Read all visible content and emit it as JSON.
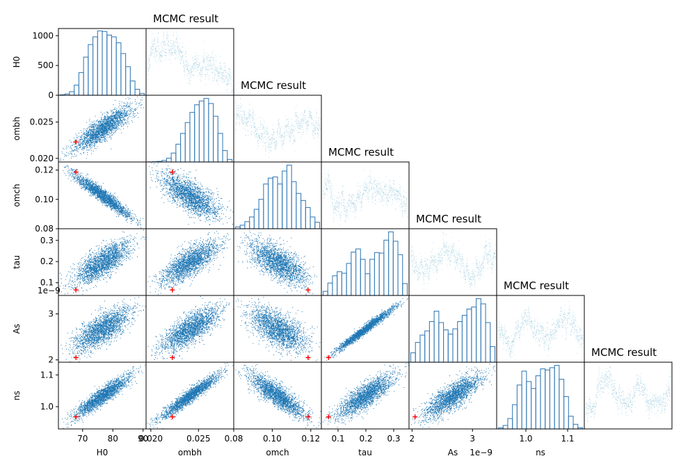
{
  "chart_data": {
    "type": "corner",
    "parameters": [
      "H0",
      "ombh",
      "omch",
      "tau",
      "As",
      "ns"
    ],
    "axes": {
      "H0": {
        "range": [
          62,
          91
        ],
        "ticks": [
          70,
          80,
          90
        ],
        "tick_labels": [
          "70",
          "80",
          "90"
        ]
      },
      "ombh": {
        "range": [
          0.0195,
          0.0287
        ],
        "ticks": [
          0.02,
          0.025
        ],
        "tick_labels": [
          "0.020",
          "0.025"
        ]
      },
      "omch": {
        "range": [
          0.08,
          0.1255
        ],
        "ticks": [
          0.08,
          0.1,
          0.12
        ],
        "tick_labels": [
          "0.08",
          "0.10",
          "0.12"
        ]
      },
      "tau": {
        "range": [
          0.04,
          0.355
        ],
        "ticks": [
          0.1,
          0.2,
          0.3
        ],
        "tick_labels": [
          "0.1",
          "0.2",
          "0.3"
        ]
      },
      "As": {
        "range": [
          1.95e-09,
          3.4e-09
        ],
        "ticks": [
          2e-09,
          3e-09
        ],
        "tick_labels": [
          "2",
          "3"
        ],
        "offset_label": "1e−9"
      },
      "ns": {
        "range": [
          0.93,
          1.14
        ],
        "ticks": [
          1.0,
          1.1
        ],
        "tick_labels": [
          "1.0",
          "1.1"
        ]
      }
    },
    "h0_count_axis": {
      "range": [
        0,
        1120
      ],
      "ticks": [
        0,
        500,
        1000
      ],
      "tick_labels": [
        "0",
        "500",
        "1000"
      ]
    },
    "reference_point": {
      "H0": 67.8,
      "ombh": 0.02226,
      "omch": 0.1186,
      "tau": 0.066,
      "As": 2.05e-09,
      "ns": 0.968
    },
    "histograms": {
      "H0": [
        8,
        22,
        60,
        170,
        380,
        640,
        850,
        980,
        1080,
        1070,
        1010,
        980,
        880,
        700,
        480,
        240,
        100,
        30
      ],
      "ombh": [
        2,
        4,
        10,
        25,
        60,
        140,
        280,
        450,
        620,
        780,
        900,
        960,
        1000,
        920,
        720,
        450,
        180,
        40
      ],
      "omch": [
        30,
        60,
        120,
        200,
        330,
        500,
        760,
        860,
        880,
        760,
        980,
        1080,
        800,
        600,
        480,
        360,
        200,
        110
      ],
      "tau": [
        80,
        240,
        380,
        460,
        430,
        620,
        840,
        900,
        700,
        420,
        700,
        830,
        820,
        1070,
        1230,
        1050,
        790,
        230
      ],
      "As": [
        180,
        380,
        520,
        600,
        780,
        980,
        760,
        620,
        540,
        640,
        780,
        900,
        1020,
        1060,
        1220,
        1120,
        760,
        300
      ],
      "ns": [
        20,
        60,
        180,
        420,
        760,
        1000,
        820,
        700,
        920,
        1040,
        1020,
        1060,
        1100,
        860,
        560,
        220,
        80,
        20
      ]
    },
    "correlations": {
      "ombh|H0": 0.85,
      "omch|H0": -0.95,
      "tau|H0": 0.75,
      "As|H0": 0.72,
      "ns|H0": 0.92,
      "omch|ombh": -0.7,
      "tau|ombh": 0.75,
      "As|ombh": 0.75,
      "ns|ombh": 0.95,
      "tau|omch": -0.65,
      "As|omch": -0.6,
      "ns|omch": -0.85,
      "As|tau": 0.98,
      "ns|tau": 0.82,
      "ns|As": 0.8
    },
    "trace_title": "MCMC result",
    "colors": {
      "scatter": "#1f77b4",
      "hist": "#3d7fb8",
      "trace": "#a3cfe0",
      "marker": "#ff0000"
    }
  }
}
